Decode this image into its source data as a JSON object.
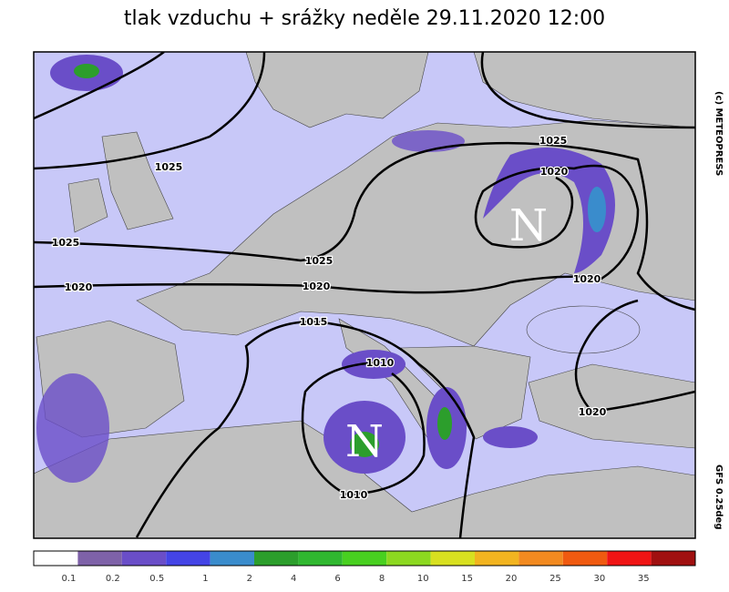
{
  "title": "tlak vzduchu + srážky  neděle 29.11.2020 12:00",
  "credit": "(c) METEOPRESS",
  "model": "GFS 0.25deg",
  "isobar_labels": [
    "1025",
    "1025",
    "1020",
    "1025",
    "1020",
    "1015",
    "1025",
    "1020",
    "1020",
    "1010",
    "1020",
    "1010"
  ],
  "pressure_centers": [
    "N",
    "N"
  ],
  "legend": {
    "colors": [
      "#ffffff",
      "#7e62a8",
      "#6a4ec8",
      "#4444e6",
      "#3a8ccc",
      "#2c9e2c",
      "#30b830",
      "#48d020",
      "#8cd820",
      "#d8e020",
      "#f2b420",
      "#f28a20",
      "#f05a10",
      "#f01414",
      "#a01010"
    ],
    "labels": [
      "0.1",
      "0.2",
      "0.5",
      "1",
      "2",
      "4",
      "6",
      "8",
      "10",
      "15",
      "20",
      "25",
      "30",
      "35"
    ]
  }
}
